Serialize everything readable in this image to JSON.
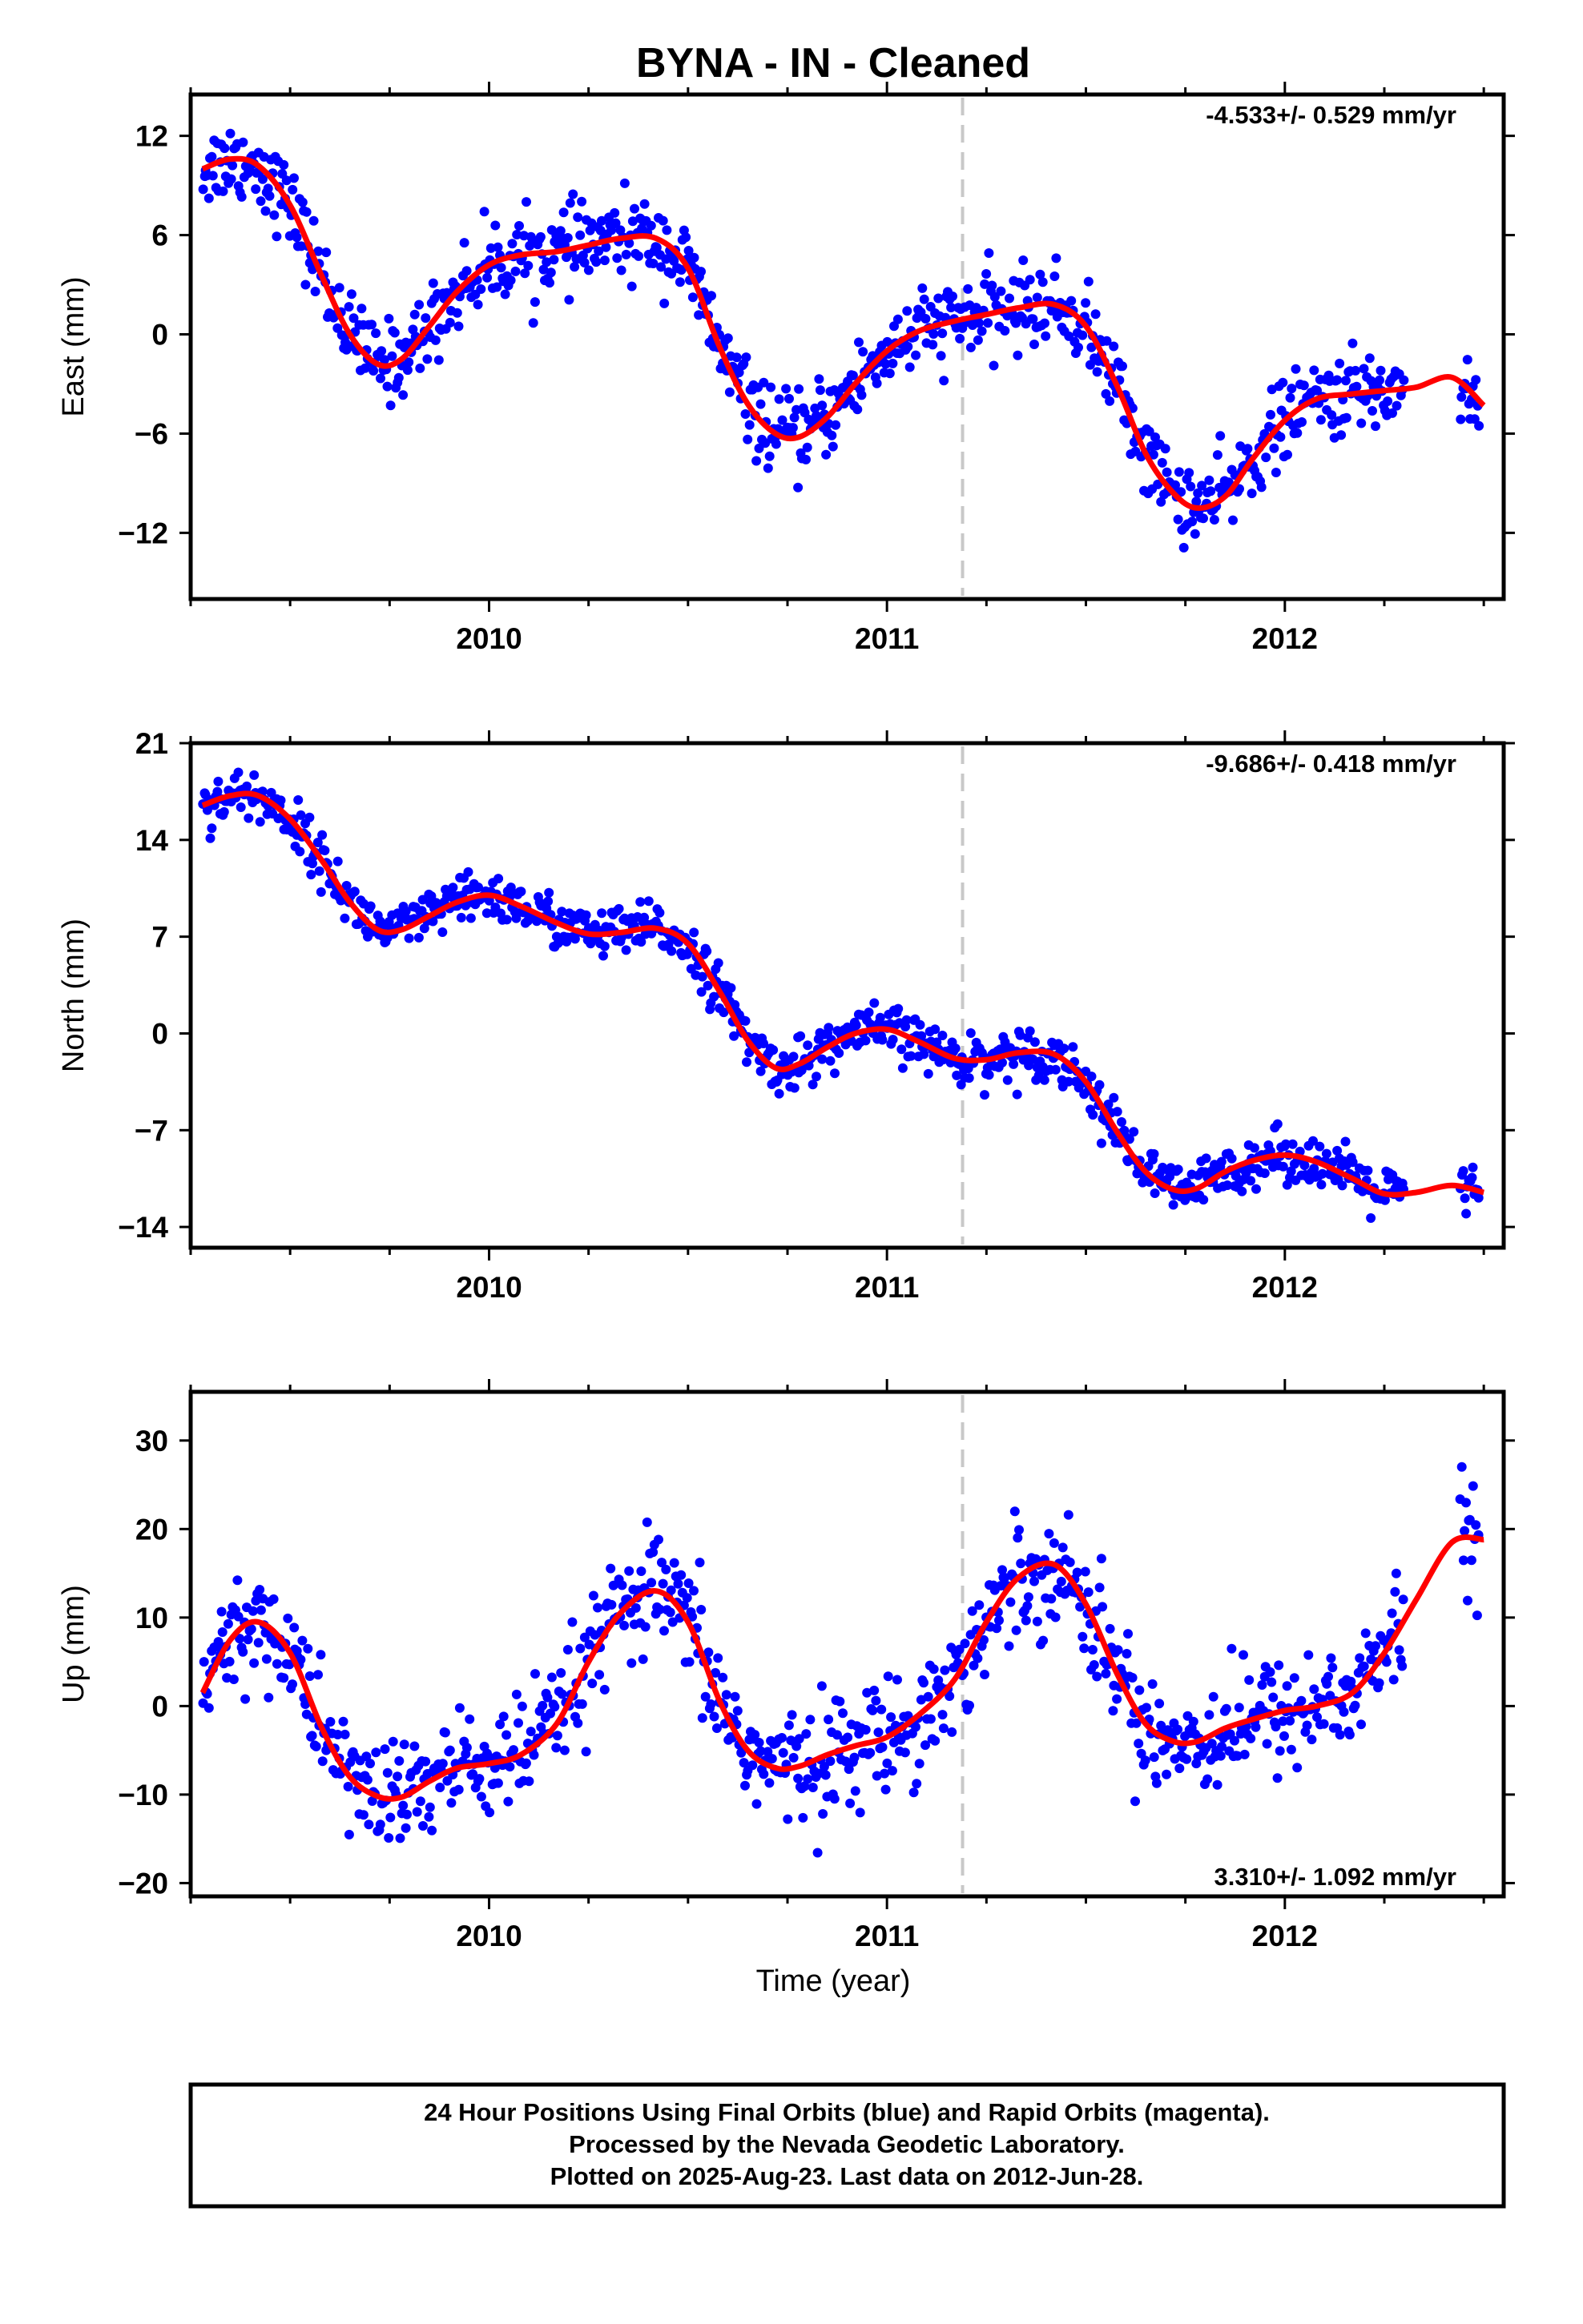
{
  "chart_data": {
    "type": "scatter",
    "title": "BYNA  - IN - Cleaned",
    "xlabel": "Time (year)",
    "xlim": [
      2009.25,
      2012.55
    ],
    "x_tick_labels": [
      "2010",
      "2011",
      "2012"
    ],
    "x_ticks": [
      2010,
      2011,
      2012
    ],
    "x_minor_ticks": [
      2009.25,
      2009.5,
      2009.75,
      2010.25,
      2010.5,
      2010.75,
      2011.25,
      2011.5,
      2011.75,
      2012.25,
      2012.5
    ],
    "event_line_x": 2011.19,
    "colors": {
      "points": "#0000ff",
      "fit": "#ff0000",
      "event": "#c8c8c8"
    },
    "panels": [
      {
        "name": "east",
        "ylabel": "East (mm)",
        "ylim": [
          -16,
          14.5
        ],
        "y_ticks": [
          12,
          6,
          0,
          -6,
          -12
        ],
        "y_tick_labels": [
          "12",
          "6",
          "0",
          "−6",
          "−12"
        ],
        "rate_label": "-4.533+/- 0.529 mm/yr",
        "rate_position": "top-right",
        "fit": {
          "x": [
            2009.28,
            2009.35,
            2009.42,
            2009.5,
            2009.58,
            2009.65,
            2009.72,
            2009.78,
            2009.85,
            2009.92,
            2010.0,
            2010.08,
            2010.17,
            2010.25,
            2010.33,
            2010.42,
            2010.5,
            2010.58,
            2010.65,
            2010.72,
            2010.78,
            2010.85,
            2010.92,
            2011.0,
            2011.08,
            2011.17,
            2011.25,
            2011.33,
            2011.42,
            2011.5,
            2011.58,
            2011.65,
            2011.72,
            2011.78,
            2011.85,
            2011.92,
            2012.0,
            2012.08,
            2012.17,
            2012.25,
            2012.33,
            2012.42,
            2012.5
          ],
          "y": [
            10.0,
            10.6,
            10.2,
            7.8,
            3.5,
            0.0,
            -1.8,
            -1.5,
            0.5,
            2.6,
            4.2,
            4.8,
            5.0,
            5.4,
            5.8,
            5.8,
            4.0,
            -0.8,
            -4.2,
            -6.0,
            -6.2,
            -5.0,
            -3.0,
            -1.0,
            0.2,
            0.8,
            1.2,
            1.6,
            1.8,
            0.5,
            -3.2,
            -7.2,
            -9.6,
            -10.5,
            -9.8,
            -7.5,
            -5.2,
            -3.9,
            -3.6,
            -3.4,
            -3.2,
            -2.6,
            -4.3
          ]
        }
      },
      {
        "name": "north",
        "ylabel": "North (mm)",
        "ylim": [
          -15.5,
          21
        ],
        "y_ticks": [
          21,
          14,
          7,
          0,
          -7,
          -14
        ],
        "y_tick_labels": [
          "21",
          "14",
          "7",
          "0",
          "−7",
          "−14"
        ],
        "rate_label": "-9.686+/- 0.418 mm/yr",
        "rate_position": "top-right",
        "fit": {
          "x": [
            2009.28,
            2009.35,
            2009.42,
            2009.5,
            2009.58,
            2009.65,
            2009.72,
            2009.78,
            2009.85,
            2009.92,
            2010.0,
            2010.08,
            2010.17,
            2010.25,
            2010.33,
            2010.42,
            2010.5,
            2010.58,
            2010.65,
            2010.72,
            2010.78,
            2010.85,
            2010.92,
            2011.0,
            2011.08,
            2011.17,
            2011.25,
            2011.33,
            2011.42,
            2011.5,
            2011.58,
            2011.65,
            2011.72,
            2011.78,
            2011.85,
            2011.92,
            2012.0,
            2012.08,
            2012.17,
            2012.25,
            2012.33,
            2012.42,
            2012.5
          ],
          "y": [
            16.5,
            17.2,
            17.2,
            15.5,
            12.5,
            9.5,
            7.5,
            7.5,
            8.5,
            9.5,
            10.0,
            9.2,
            8.0,
            7.2,
            7.3,
            7.6,
            6.5,
            3.0,
            -0.5,
            -2.5,
            -2.2,
            -1.0,
            0.0,
            0.3,
            -0.6,
            -1.8,
            -1.9,
            -1.4,
            -1.5,
            -3.5,
            -7.2,
            -10.0,
            -11.3,
            -11.2,
            -10.0,
            -9.2,
            -8.8,
            -9.3,
            -10.5,
            -11.6,
            -11.5,
            -11.0,
            -11.5
          ]
        }
      },
      {
        "name": "up",
        "ylabel": "Up (mm)",
        "ylim": [
          -21.5,
          35.5
        ],
        "y_ticks": [
          30,
          20,
          10,
          0,
          -10,
          -20
        ],
        "y_tick_labels": [
          "30",
          "20",
          "10",
          "0",
          "−10",
          "−20"
        ],
        "rate_label": "3.310+/- 1.092 mm/yr",
        "rate_position": "bottom-right",
        "fit": {
          "x": [
            2009.28,
            2009.35,
            2009.42,
            2009.5,
            2009.58,
            2009.65,
            2009.72,
            2009.78,
            2009.85,
            2009.92,
            2010.0,
            2010.08,
            2010.17,
            2010.25,
            2010.33,
            2010.42,
            2010.5,
            2010.58,
            2010.65,
            2010.72,
            2010.78,
            2010.85,
            2010.92,
            2011.0,
            2011.08,
            2011.17,
            2011.25,
            2011.33,
            2011.42,
            2011.5,
            2011.58,
            2011.65,
            2011.72,
            2011.78,
            2011.85,
            2011.92,
            2012.0,
            2012.08,
            2012.17,
            2012.25,
            2012.33,
            2012.42,
            2012.5
          ],
          "y": [
            1.5,
            7.5,
            9.5,
            6.0,
            -2.5,
            -8.0,
            -10.2,
            -10.3,
            -8.5,
            -7.0,
            -6.5,
            -5.5,
            -2.0,
            5.0,
            10.5,
            13.0,
            9.5,
            0.5,
            -5.0,
            -7.0,
            -6.8,
            -5.5,
            -4.5,
            -3.5,
            -1.0,
            3.0,
            9.5,
            14.5,
            16.0,
            11.5,
            3.5,
            -2.0,
            -4.0,
            -4.0,
            -2.5,
            -1.5,
            -0.5,
            0.0,
            1.5,
            6.0,
            12.0,
            18.5,
            18.8
          ]
        }
      }
    ]
  },
  "footer": {
    "line1": "24 Hour Positions Using Final Orbits (blue) and Rapid Orbits (magenta).",
    "line2": "Processed by the Nevada Geodetic Laboratory.",
    "line3": "Plotted on 2025-Aug-23. Last data on 2012-Jun-28."
  }
}
